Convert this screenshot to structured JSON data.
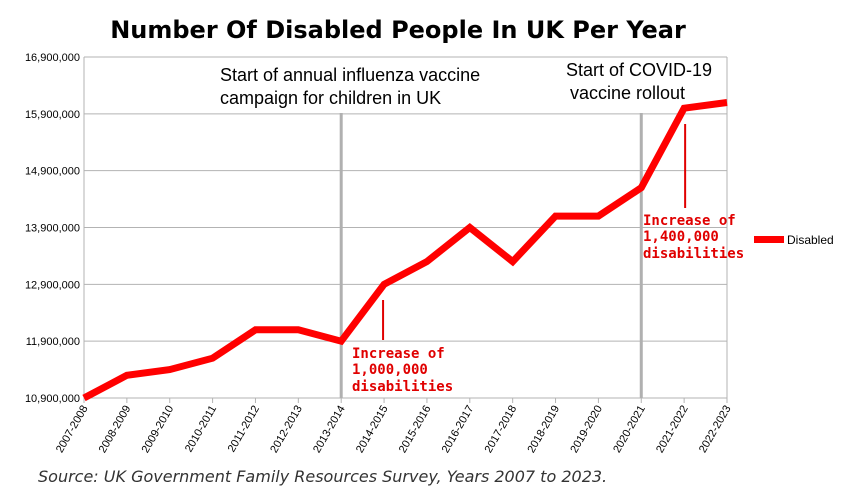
{
  "chart_data": {
    "type": "line",
    "title": "Number Of Disabled People In UK Per Year",
    "categories": [
      "2007-2008",
      "2008-2009",
      "2009-2010",
      "2010-2011",
      "2011-2012",
      "2012-2013",
      "2013-2014",
      "2014-2015",
      "2015-2016",
      "2016-2017",
      "2017-2018",
      "2018-2019",
      "2019-2020",
      "2020-2021",
      "2021-2022",
      "2022-2023"
    ],
    "series": [
      {
        "name": "Disabled",
        "color": "#ff0000",
        "values": [
          10900000,
          11300000,
          11400000,
          11600000,
          12100000,
          12100000,
          11900000,
          12900000,
          13300000,
          13900000,
          13300000,
          14100000,
          14100000,
          14600000,
          16000000,
          16100000
        ]
      }
    ],
    "ylim": [
      10900000,
      16900000
    ],
    "yticks": [
      "10,900,000",
      "11,900,000",
      "12,900,000",
      "13,900,000",
      "14,900,000",
      "15,900,000",
      "16,900,000"
    ],
    "ytick_values": [
      10900000,
      11900000,
      12900000,
      13900000,
      14900000,
      15900000,
      16900000
    ],
    "grid": "horizontal",
    "legend": "right",
    "annotations": {
      "influenza": {
        "line_at": "2013-2014",
        "text_line1": "Start of annual influenza vaccine",
        "text_line2": "campaign for children in UK"
      },
      "covid": {
        "line_at": "2020-2021",
        "text_line1": "Start of COVID-19",
        "text_line2": "vaccine rollout"
      },
      "increase1": {
        "at": "2014-2015",
        "line1": "Increase of",
        "line2": "1,000,000",
        "line3": "disabilities"
      },
      "increase2": {
        "at": "2021-2022",
        "line1": "Increase of",
        "line2": "1,400,000",
        "line3": "disabilities"
      }
    }
  },
  "source": "Source: UK Government Family Resources Survey, Years 2007 to 2023."
}
